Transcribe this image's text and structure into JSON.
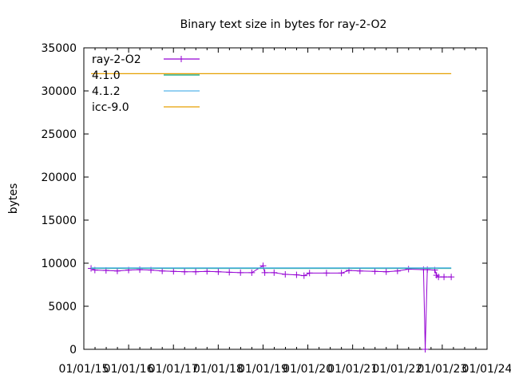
{
  "chart_data": {
    "type": "line",
    "title": "Binary text size in bytes for ray-2-O2",
    "xlabel": "",
    "ylabel": "bytes",
    "xlim": [
      "2015-01-01",
      "2024-01-01"
    ],
    "ylim": [
      0,
      35000
    ],
    "xticks": [
      "01/01/15",
      "01/01/16",
      "01/01/17",
      "01/01/18",
      "01/01/19",
      "01/01/20",
      "01/01/21",
      "01/01/22",
      "01/01/23",
      "01/01/24"
    ],
    "yticks": [
      "0",
      "5000",
      "10000",
      "15000",
      "20000",
      "25000",
      "30000",
      "35000"
    ],
    "legend": "top-left",
    "grid": false,
    "series": [
      {
        "name": "ray-2-O2",
        "color": "#9400d3",
        "style": "linespoints",
        "points": [
          [
            "2015-03-01",
            9400
          ],
          [
            "2015-04-01",
            9200
          ],
          [
            "2015-07-01",
            9150
          ],
          [
            "2015-10-01",
            9100
          ],
          [
            "2016-01-01",
            9200
          ],
          [
            "2016-04-01",
            9250
          ],
          [
            "2016-07-01",
            9200
          ],
          [
            "2016-10-01",
            9100
          ],
          [
            "2017-01-01",
            9050
          ],
          [
            "2017-04-01",
            9000
          ],
          [
            "2017-07-01",
            9000
          ],
          [
            "2017-10-01",
            9050
          ],
          [
            "2018-01-01",
            9000
          ],
          [
            "2018-04-01",
            8950
          ],
          [
            "2018-07-01",
            8900
          ],
          [
            "2018-10-01",
            8900
          ],
          [
            "2019-01-01",
            9700
          ],
          [
            "2019-01-15",
            8900
          ],
          [
            "2019-04-01",
            8900
          ],
          [
            "2019-07-01",
            8700
          ],
          [
            "2019-10-01",
            8650
          ],
          [
            "2019-12-01",
            8550
          ],
          [
            "2020-01-15",
            8850
          ],
          [
            "2020-06-01",
            8850
          ],
          [
            "2020-10-01",
            8850
          ],
          [
            "2020-12-01",
            9150
          ],
          [
            "2021-03-01",
            9100
          ],
          [
            "2021-07-01",
            9050
          ],
          [
            "2021-10-01",
            9000
          ],
          [
            "2022-01-01",
            9100
          ],
          [
            "2022-04-01",
            9300
          ],
          [
            "2022-08-01",
            9250
          ],
          [
            "2022-08-15",
            0
          ],
          [
            "2022-09-01",
            9250
          ],
          [
            "2022-11-01",
            9200
          ],
          [
            "2022-11-15",
            8600
          ],
          [
            "2022-12-01",
            8400
          ],
          [
            "2023-01-15",
            8400
          ],
          [
            "2023-03-15",
            8400
          ]
        ]
      },
      {
        "name": "4.1.0",
        "color": "#009e73",
        "style": "line",
        "points": [
          [
            "2015-03-01",
            9400
          ],
          [
            "2023-03-15",
            9400
          ]
        ]
      },
      {
        "name": "4.1.2",
        "color": "#56b4e9",
        "style": "line",
        "points": [
          [
            "2015-03-01",
            9450
          ],
          [
            "2023-03-15",
            9450
          ]
        ]
      },
      {
        "name": "icc-9.0",
        "color": "#e69f00",
        "style": "line",
        "points": [
          [
            "2015-03-01",
            32000
          ],
          [
            "2023-03-15",
            32000
          ]
        ]
      }
    ]
  }
}
